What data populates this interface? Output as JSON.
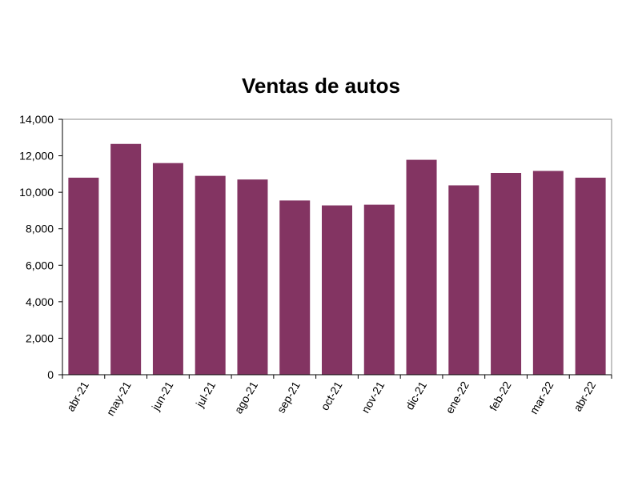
{
  "chart_data": {
    "type": "bar",
    "title": "Ventas de autos",
    "xlabel": "",
    "ylabel": "",
    "categories": [
      "abr-21",
      "may-21",
      "jun-21",
      "jul-21",
      "ago-21",
      "sep-21",
      "oct-21",
      "nov-21",
      "dic-21",
      "ene-22",
      "feb-22",
      "mar-22",
      "abr-22"
    ],
    "values": [
      10800,
      12650,
      11600,
      10900,
      10700,
      9550,
      9280,
      9320,
      11780,
      10380,
      11060,
      11170,
      10800
    ],
    "ylim": [
      0,
      14000
    ],
    "yticks": [
      0,
      2000,
      4000,
      6000,
      8000,
      10000,
      12000,
      14000
    ],
    "ytick_labels": [
      "0",
      "2,000",
      "4,000",
      "6,000",
      "8,000",
      "10,000",
      "12,000",
      "14,000"
    ],
    "grid": false,
    "legend": "none",
    "bar_color": "#833462"
  }
}
